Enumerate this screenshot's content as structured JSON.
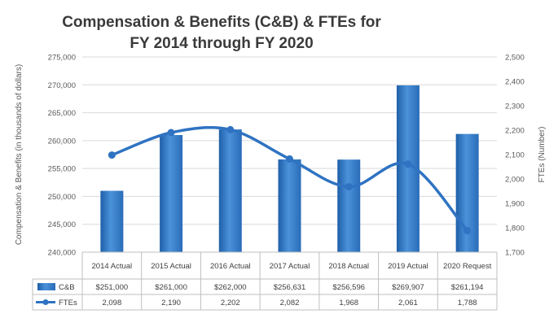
{
  "chart_data": {
    "type": "bar",
    "title_line1": "Compensation & Benefits (C&B)  & FTEs for",
    "title_line2": "FY 2014 through FY 2020",
    "ylabel_left": "Compensation & Benefits (in thousands of dollars)",
    "ylabel_right": "FTEs (Number)",
    "ylim_left": [
      240000,
      275000
    ],
    "ylim_right": [
      1700,
      2500
    ],
    "left_ticks": [
      "240,000",
      "245,000",
      "250,000",
      "255,000",
      "260,000",
      "265,000",
      "270,000",
      "275,000"
    ],
    "right_ticks": [
      "1,700",
      "1,800",
      "1,900",
      "2,000",
      "2,100",
      "2,200",
      "2,300",
      "2,400",
      "2,500"
    ],
    "categories": [
      "2014  Actual",
      "2015  Actual",
      "2016 Actual",
      "2017 Actual",
      "2018 Actual",
      "2019 Actual",
      "2020 Request"
    ],
    "grid": true,
    "series": [
      {
        "name": "C&B",
        "kind": "bar",
        "axis": "left",
        "color": "#3a7ec4",
        "values": [
          251000,
          261000,
          262000,
          256631,
          256596,
          269907,
          261194
        ],
        "labels": [
          "$251,000",
          "$261,000",
          "$262,000",
          "$256,631",
          "$256,596",
          "$269,907",
          "$261,194"
        ]
      },
      {
        "name": "FTEs",
        "kind": "line",
        "axis": "right",
        "color": "#2f73c2",
        "values": [
          2098,
          2190,
          2202,
          2082,
          1968,
          2061,
          1788
        ],
        "labels": [
          "2,098",
          "2,190",
          "2,202",
          "2,082",
          "1,968",
          "2,061",
          "1,788"
        ]
      }
    ],
    "legend": "data-table"
  }
}
